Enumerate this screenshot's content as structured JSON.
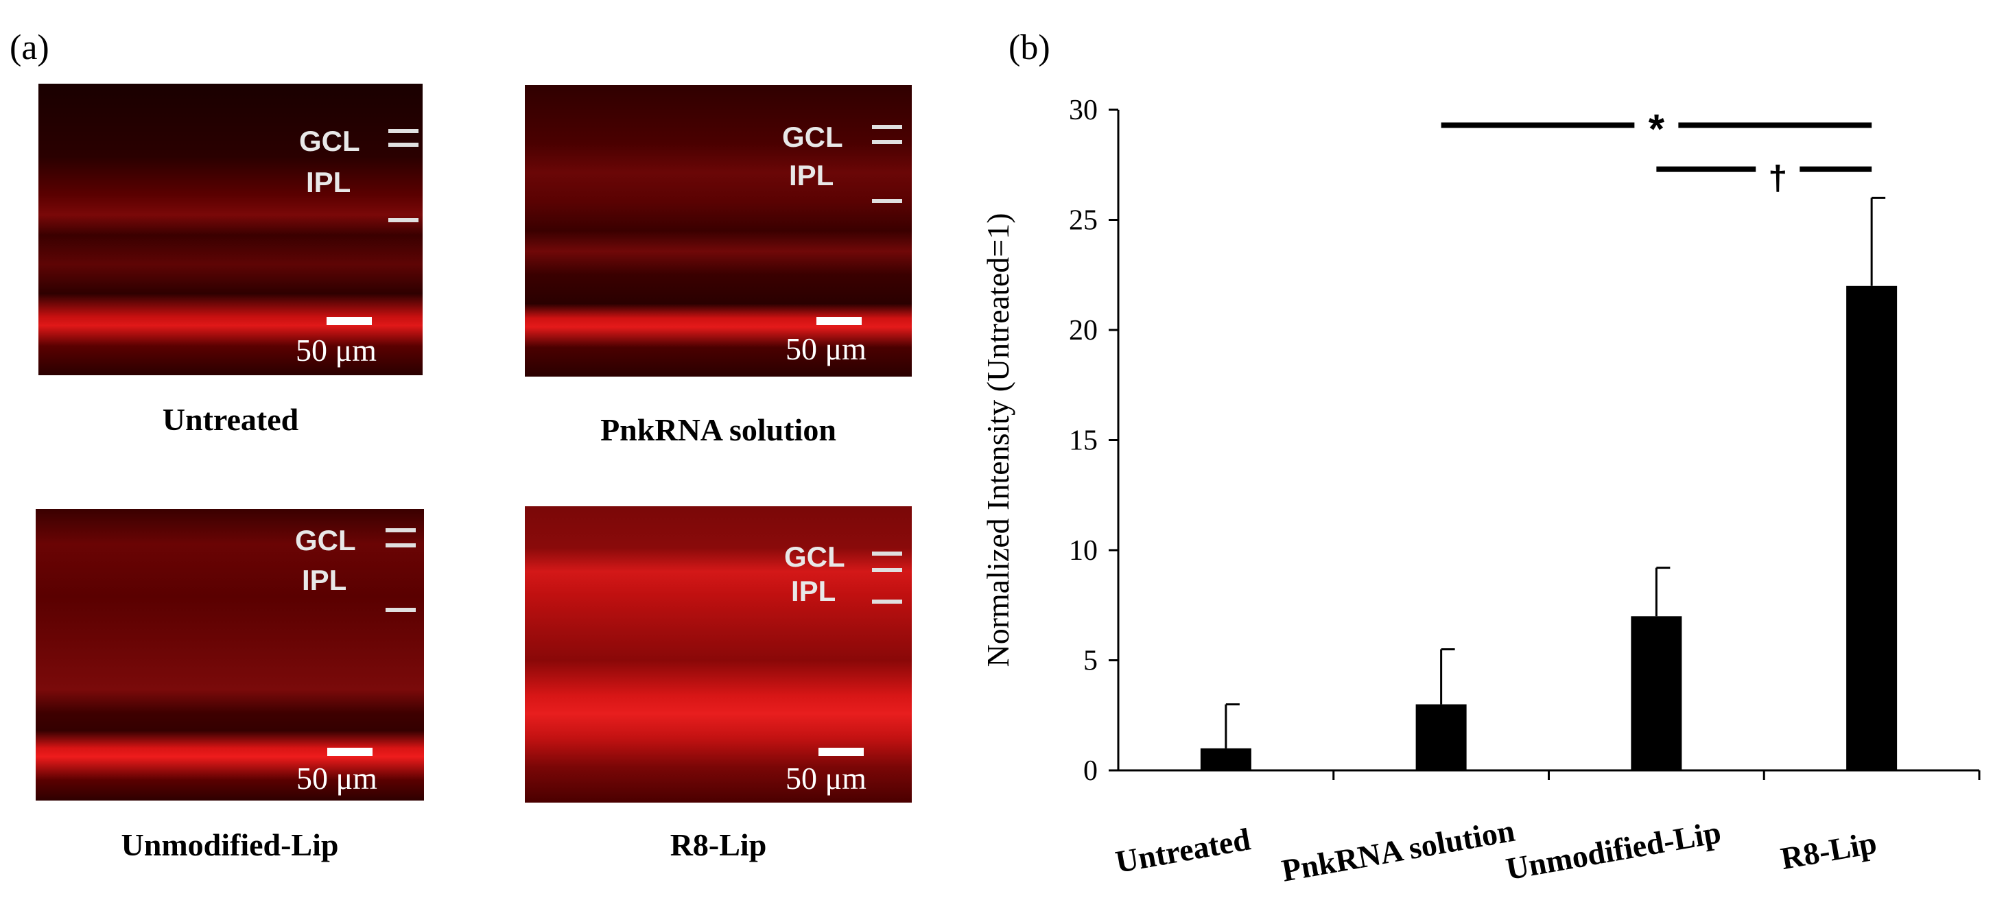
{
  "panel_a_label": "(a)",
  "panel_b_label": "(b)",
  "micrographs": [
    {
      "caption": "Untreated",
      "tag_top": "GCL",
      "tag_bottom": "IPL",
      "scale": "50 μm"
    },
    {
      "caption": "PnkRNA solution",
      "tag_top": "GCL",
      "tag_bottom": "IPL",
      "scale": "50 μm"
    },
    {
      "caption": "Unmodified-Lip",
      "tag_top": "GCL",
      "tag_bottom": "IPL",
      "scale": "50 μm"
    },
    {
      "caption": "R8-Lip",
      "tag_top": "GCL",
      "tag_bottom": "IPL",
      "scale": "50 μm"
    }
  ],
  "colors": {
    "bars": "#000000",
    "fluorescence": "#e00000",
    "background": "#ffffff"
  },
  "chart_data": {
    "type": "bar",
    "categories": [
      "Untreated",
      "PnkRNA solution",
      "Unmodified-Lip",
      "R8-Lip"
    ],
    "values": [
      1,
      3,
      7,
      22
    ],
    "errors": [
      2,
      2.5,
      2.2,
      4
    ],
    "ylabel": "Normalized Intensity (Untreated=1)",
    "xlabel": "",
    "ylim": [
      0,
      30
    ],
    "yticks": [
      0,
      5,
      10,
      15,
      20,
      25,
      30
    ],
    "grid": false,
    "significance": [
      {
        "symbol": "*",
        "from": "PnkRNA solution",
        "to": "R8-Lip"
      },
      {
        "symbol": "†",
        "from": "Unmodified-Lip",
        "to": "R8-Lip"
      }
    ]
  }
}
